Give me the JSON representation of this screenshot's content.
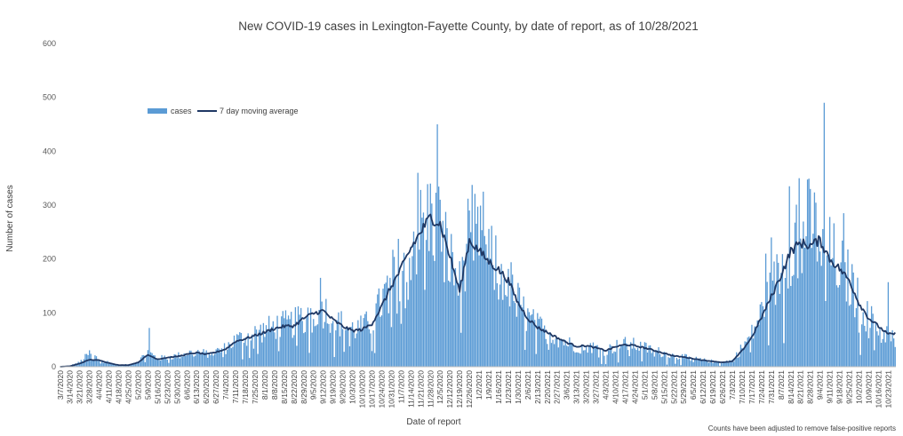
{
  "chart_data": {
    "type": "bar",
    "title": "New COVID-19 cases in Lexington-Fayette County, by date of report, as of 10/28/2021",
    "xlabel": "Date of report",
    "ylabel": "Number of cases",
    "footnote": "Counts have been adjusted to remove false-positive reports",
    "ylim": [
      0,
      600
    ],
    "yticks": [
      0,
      100,
      200,
      300,
      400,
      500,
      600
    ],
    "grid": false,
    "legend_position": "upper-left inside plot",
    "colors": {
      "bars": "#5b9bd5",
      "line": "#1f3864",
      "axis": "#bfbfbf"
    },
    "x_start": "3/7/2020",
    "x_end": "10/28/2021",
    "xtick_labels": [
      "3/7/2020",
      "3/14/2020",
      "3/21/2020",
      "3/28/2020",
      "4/4/2020",
      "4/11/2020",
      "4/18/2020",
      "4/25/2020",
      "5/2/2020",
      "5/9/2020",
      "5/16/2020",
      "5/23/2020",
      "5/30/2020",
      "6/6/2020",
      "6/13/2020",
      "6/20/2020",
      "6/27/2020",
      "7/4/2020",
      "7/11/2020",
      "7/18/2020",
      "7/25/2020",
      "8/1/2020",
      "8/8/2020",
      "8/15/2020",
      "8/22/2020",
      "8/29/2020",
      "9/5/2020",
      "9/12/2020",
      "9/19/2020",
      "9/26/2020",
      "10/3/2020",
      "10/10/2020",
      "10/17/2020",
      "10/24/2020",
      "10/31/2020",
      "11/7/2020",
      "11/14/2020",
      "11/21/2020",
      "11/28/2020",
      "12/5/2020",
      "12/12/2020",
      "12/19/2020",
      "12/26/2020",
      "1/2/2021",
      "1/9/2021",
      "1/16/2021",
      "1/23/2021",
      "1/30/2021",
      "2/6/2021",
      "2/13/2021",
      "2/20/2021",
      "2/27/2021",
      "3/6/2021",
      "3/13/2021",
      "3/20/2021",
      "3/27/2021",
      "4/3/2021",
      "4/10/2021",
      "4/17/2021",
      "4/24/2021",
      "5/1/2021",
      "5/8/2021",
      "5/15/2021",
      "5/22/2021",
      "5/29/2021",
      "6/5/2021",
      "6/12/2021",
      "6/19/2021",
      "6/26/2021",
      "7/3/2021",
      "7/10/2021",
      "7/17/2021",
      "7/24/2021",
      "7/31/2021",
      "8/7/2021",
      "8/14/2021",
      "8/21/2021",
      "8/28/2021",
      "9/4/2021",
      "9/11/2021",
      "9/18/2021",
      "9/25/2021",
      "10/2/2021",
      "10/9/2021",
      "10/16/2021",
      "10/23/2021"
    ],
    "series": [
      {
        "name": "cases",
        "kind": "bar",
        "weekly_levels": [
          0,
          2,
          8,
          25,
          14,
          8,
          3,
          4,
          10,
          28,
          15,
          18,
          20,
          25,
          28,
          24,
          28,
          35,
          50,
          55,
          62,
          68,
          75,
          78,
          80,
          95,
          105,
          108,
          90,
          78,
          70,
          72,
          85,
          120,
          160,
          190,
          230,
          255,
          280,
          260,
          200,
          150,
          260,
          230,
          200,
          185,
          160,
          120,
          90,
          75,
          65,
          55,
          45,
          38,
          40,
          35,
          30,
          38,
          42,
          40,
          35,
          30,
          25,
          20,
          18,
          15,
          12,
          10,
          8,
          12,
          35,
          60,
          100,
          140,
          180,
          230,
          280,
          260,
          250,
          210,
          190,
          160,
          120,
          90,
          75,
          60,
          65
        ],
        "notable_peaks": [
          {
            "date": "12/3/2020",
            "value": 450
          },
          {
            "date": "11/19/2020",
            "value": 360
          },
          {
            "date": "11/28/2020",
            "value": 340
          },
          {
            "date": "12/5/2020",
            "value": 310
          },
          {
            "date": "1/5/2021",
            "value": 325
          },
          {
            "date": "12/26/2020",
            "value": 290
          },
          {
            "date": "9/7/2021",
            "value": 490
          },
          {
            "date": "8/20/2021",
            "value": 350
          },
          {
            "date": "8/13/2021",
            "value": 335
          },
          {
            "date": "8/28/2021",
            "value": 330
          },
          {
            "date": "9/21/2021",
            "value": 285
          },
          {
            "date": "9/10/2020",
            "value": 165
          },
          {
            "date": "10/23/2021",
            "value": 157
          },
          {
            "date": "7/27/2021",
            "value": 210
          },
          {
            "date": "7/31/2021",
            "value": 240
          },
          {
            "date": "5/10/2020",
            "value": 72
          }
        ]
      },
      {
        "name": "7 day moving average",
        "kind": "line",
        "weekly_levels": [
          0,
          1,
          6,
          13,
          12,
          7,
          3,
          3,
          8,
          22,
          14,
          17,
          19,
          23,
          26,
          23,
          27,
          33,
          47,
          52,
          58,
          64,
          71,
          75,
          76,
          90,
          99,
          104,
          87,
          75,
          67,
          69,
          80,
          112,
          150,
          182,
          220,
          250,
          278,
          265,
          205,
          140,
          235,
          215,
          195,
          180,
          160,
          118,
          90,
          73,
          64,
          54,
          45,
          38,
          39,
          35,
          30,
          37,
          41,
          39,
          35,
          30,
          25,
          20,
          18,
          15,
          12,
          10,
          8,
          10,
          30,
          55,
          92,
          130,
          170,
          215,
          230,
          225,
          235,
          200,
          182,
          160,
          118,
          90,
          75,
          60,
          62
        ]
      }
    ]
  }
}
